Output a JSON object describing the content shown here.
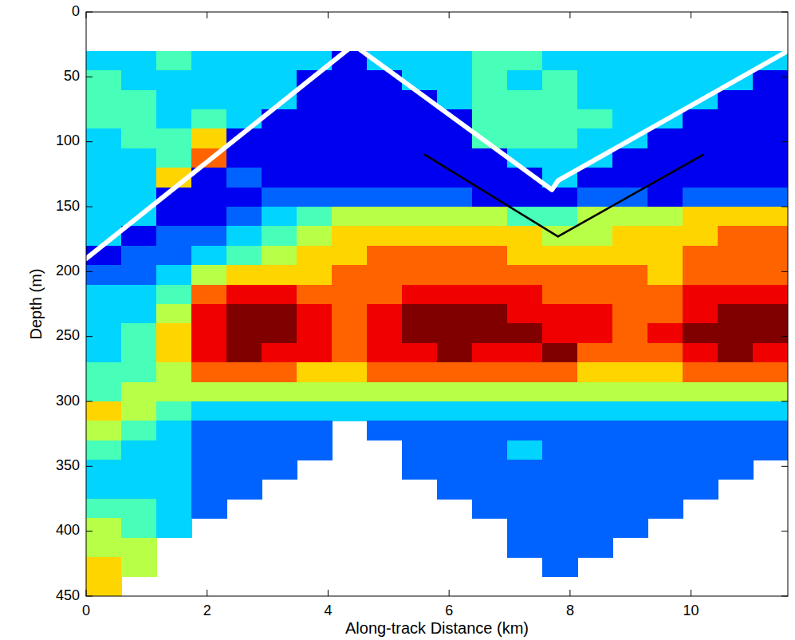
{
  "chart_data": {
    "type": "heatmap",
    "x_label": "Along-track Distance (km)",
    "y_label": "Depth (m)",
    "xlim": [
      0,
      11.6
    ],
    "ylim": [
      450,
      0
    ],
    "xticks": [
      0,
      2,
      4,
      6,
      8,
      10
    ],
    "yticks": [
      0,
      50,
      100,
      150,
      200,
      250,
      300,
      350,
      400,
      450
    ],
    "grid": false,
    "zlim": [
      0,
      9
    ],
    "x": [
      0.29,
      0.87,
      1.45,
      2.03,
      2.61,
      3.19,
      3.77,
      4.35,
      4.93,
      5.51,
      6.09,
      6.67,
      7.25,
      7.83,
      8.41,
      8.99,
      9.57,
      10.15,
      10.73,
      11.31
    ],
    "y": [
      37.5,
      52.5,
      67.5,
      82.5,
      97.5,
      112.5,
      127.5,
      142.5,
      157.5,
      172.5,
      187.5,
      202.5,
      217.5,
      232.5,
      247.5,
      262.5,
      277.5,
      292.5,
      307.5,
      322.5,
      337.5,
      352.5,
      367.5,
      382.5,
      397.5,
      412.5,
      427.5,
      442.5
    ],
    "cells": [
      [
        3,
        3,
        4,
        3,
        3,
        3,
        3,
        1,
        3,
        3,
        3,
        4,
        4,
        3,
        3,
        3,
        3,
        3,
        3,
        3
      ],
      [
        4,
        3,
        3,
        3,
        3,
        3,
        1,
        1,
        1,
        3,
        3,
        4,
        3,
        4,
        3,
        3,
        3,
        3,
        3,
        1
      ],
      [
        4,
        4,
        3,
        3,
        3,
        3,
        1,
        1,
        1,
        1,
        3,
        4,
        4,
        4,
        3,
        3,
        3,
        3,
        1,
        1
      ],
      [
        4,
        4,
        3,
        4,
        3,
        1,
        1,
        1,
        1,
        1,
        1,
        4,
        4,
        4,
        4,
        3,
        3,
        1,
        1,
        1
      ],
      [
        3,
        4,
        4,
        6,
        1,
        1,
        1,
        1,
        1,
        1,
        1,
        4,
        4,
        4,
        3,
        3,
        1,
        1,
        1,
        1
      ],
      [
        3,
        3,
        4,
        7,
        1,
        1,
        1,
        1,
        1,
        1,
        1,
        1,
        3,
        3,
        3,
        1,
        1,
        1,
        1,
        1
      ],
      [
        3,
        3,
        6,
        1,
        2,
        1,
        1,
        1,
        1,
        1,
        1,
        1,
        1,
        3,
        1,
        1,
        1,
        1,
        1,
        1
      ],
      [
        3,
        3,
        1,
        1,
        1,
        2,
        2,
        2,
        2,
        2,
        2,
        1,
        1,
        1,
        2,
        2,
        1,
        2,
        2,
        2
      ],
      [
        3,
        3,
        1,
        1,
        2,
        3,
        4,
        5,
        5,
        5,
        5,
        5,
        4,
        4,
        5,
        5,
        5,
        6,
        6,
        6
      ],
      [
        3,
        1,
        2,
        2,
        3,
        4,
        5,
        6,
        6,
        6,
        6,
        6,
        6,
        5,
        5,
        6,
        6,
        6,
        7,
        7
      ],
      [
        1,
        2,
        2,
        3,
        4,
        5,
        6,
        6,
        7,
        7,
        7,
        7,
        6,
        6,
        6,
        6,
        6,
        7,
        7,
        7
      ],
      [
        2,
        2,
        3,
        5,
        6,
        6,
        6,
        7,
        7,
        7,
        7,
        7,
        7,
        7,
        7,
        7,
        6,
        7,
        7,
        7
      ],
      [
        3,
        3,
        4,
        7,
        8,
        8,
        7,
        7,
        7,
        8,
        8,
        8,
        8,
        7,
        7,
        7,
        7,
        8,
        8,
        8
      ],
      [
        3,
        3,
        5,
        8,
        9,
        9,
        8,
        7,
        8,
        9,
        9,
        9,
        8,
        8,
        8,
        7,
        7,
        8,
        9,
        9
      ],
      [
        3,
        4,
        6,
        8,
        9,
        9,
        8,
        7,
        8,
        9,
        9,
        9,
        9,
        8,
        8,
        7,
        8,
        9,
        9,
        9
      ],
      [
        3,
        4,
        6,
        8,
        9,
        8,
        8,
        7,
        8,
        8,
        9,
        8,
        8,
        9,
        7,
        7,
        7,
        8,
        9,
        8
      ],
      [
        4,
        4,
        5,
        7,
        7,
        7,
        6,
        6,
        7,
        7,
        7,
        7,
        7,
        7,
        6,
        6,
        6,
        7,
        7,
        7
      ],
      [
        4,
        5,
        5,
        5,
        5,
        5,
        5,
        5,
        5,
        5,
        5,
        5,
        5,
        5,
        5,
        5,
        5,
        5,
        5,
        5
      ],
      [
        6,
        5,
        4,
        3,
        3,
        3,
        3,
        3,
        3,
        3,
        3,
        3,
        3,
        3,
        3,
        3,
        3,
        3,
        3,
        3
      ],
      [
        5,
        4,
        3,
        2,
        2,
        2,
        2,
        null,
        2,
        2,
        2,
        2,
        2,
        2,
        2,
        2,
        2,
        2,
        2,
        2
      ],
      [
        4,
        3,
        3,
        2,
        2,
        2,
        2,
        null,
        null,
        2,
        2,
        2,
        3,
        2,
        2,
        2,
        2,
        2,
        2,
        2
      ],
      [
        3,
        3,
        3,
        2,
        2,
        2,
        null,
        null,
        null,
        2,
        2,
        2,
        2,
        2,
        2,
        2,
        2,
        2,
        2,
        null
      ],
      [
        3,
        3,
        3,
        2,
        2,
        null,
        null,
        null,
        null,
        null,
        2,
        2,
        2,
        2,
        2,
        2,
        2,
        2,
        null,
        null
      ],
      [
        4,
        4,
        3,
        2,
        null,
        null,
        null,
        null,
        null,
        null,
        null,
        2,
        2,
        2,
        2,
        2,
        2,
        null,
        null,
        null
      ],
      [
        5,
        4,
        3,
        null,
        null,
        null,
        null,
        null,
        null,
        null,
        null,
        null,
        2,
        2,
        2,
        2,
        null,
        null,
        null,
        null
      ],
      [
        5,
        5,
        null,
        null,
        null,
        null,
        null,
        null,
        null,
        null,
        null,
        null,
        2,
        2,
        2,
        null,
        null,
        null,
        null,
        null
      ],
      [
        6,
        5,
        null,
        null,
        null,
        null,
        null,
        null,
        null,
        null,
        null,
        null,
        null,
        2,
        null,
        null,
        null,
        null,
        null,
        null
      ],
      [
        6,
        null,
        null,
        null,
        null,
        null,
        null,
        null,
        null,
        null,
        null,
        null,
        null,
        null,
        null,
        null,
        null,
        null,
        null,
        null
      ]
    ],
    "series": [
      {
        "type": "line",
        "color": "#ffffff",
        "x": [
          0,
          4.35
        ],
        "values": [
          190,
          28
        ]
      },
      {
        "type": "line",
        "color": "#ffffff",
        "x": [
          4.5,
          7.7,
          7.8,
          11.6
        ],
        "values": [
          28,
          137,
          130,
          30
        ]
      },
      {
        "type": "line",
        "color": "#000000",
        "x": [
          5.6,
          7.8,
          10.2
        ],
        "values": [
          110,
          173,
          110
        ]
      }
    ]
  }
}
